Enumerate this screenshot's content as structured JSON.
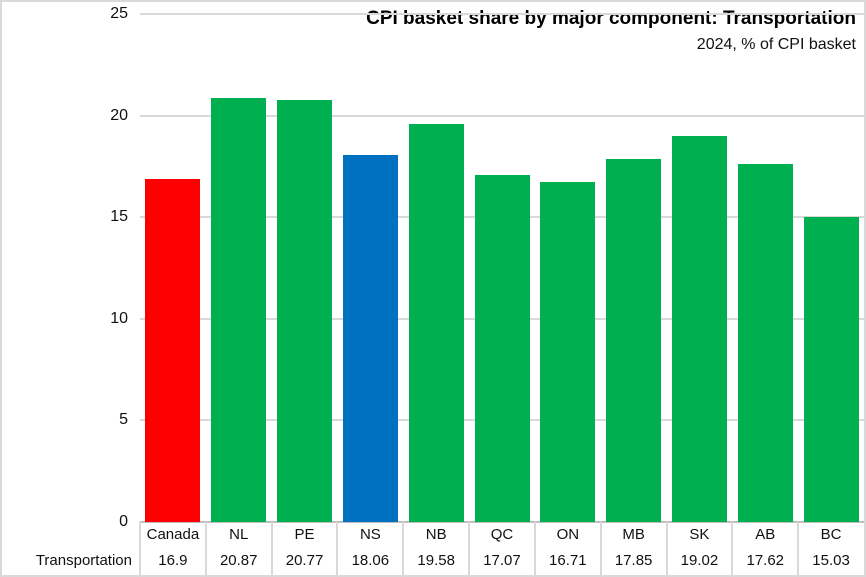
{
  "chart_data": {
    "type": "bar",
    "title": "CPI basket share by major component: Transportation",
    "subtitle": "2024, % of CPI basket",
    "row_label": "Transportation",
    "categories": [
      "Canada",
      "NL",
      "PE",
      "NS",
      "NB",
      "QC",
      "ON",
      "MB",
      "SK",
      "AB",
      "BC"
    ],
    "values": [
      16.9,
      20.87,
      20.77,
      18.06,
      19.58,
      17.07,
      16.71,
      17.85,
      19.02,
      17.62,
      15.03
    ],
    "bar_colors": [
      "#FF0000",
      "#00B050",
      "#00B050",
      "#0070C0",
      "#00B050",
      "#00B050",
      "#00B050",
      "#00B050",
      "#00B050",
      "#00B050",
      "#00B050"
    ],
    "highlight_colors": {
      "canada": "#FF0000",
      "nova_scotia": "#0070C0",
      "provinces_default": "#00B050"
    },
    "xlabel": "",
    "ylabel": "",
    "ylim": [
      0,
      25
    ],
    "yticks": [
      0,
      5,
      10,
      15,
      20,
      25
    ],
    "grid": true,
    "gridline_color": "#D9D9D9",
    "axis_color": "#BFBFBF",
    "legend": "none",
    "data_table_shown": true
  }
}
